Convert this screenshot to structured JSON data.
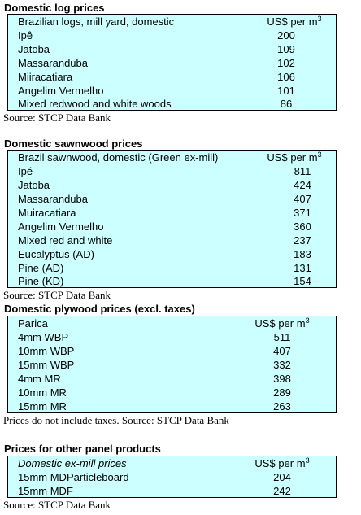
{
  "log": {
    "heading": "Domestic log prices",
    "header_label": "Brazilian logs, mill yard, domestic",
    "header_unit": "US$ per m",
    "header_sup": "3",
    "rows": [
      {
        "label": "Ipê",
        "value": "200"
      },
      {
        "label": "Jatoba",
        "value": "109"
      },
      {
        "label": "Massaranduba",
        "value": "102"
      },
      {
        "label": "Miiracatiara",
        "value": "106"
      },
      {
        "label": "Angelim Vermelho",
        "value": "101"
      },
      {
        "label": "Mixed redwood and white woods",
        "value": "86"
      }
    ],
    "source": "Source: STCP Data Bank"
  },
  "sawn": {
    "heading": "Domestic sawnwood prices",
    "header_label": "Brazil sawnwood, domestic (Green ex-mill)",
    "header_unit": "US$ per m",
    "header_sup": "3",
    "rows": [
      {
        "label": "Ipé",
        "value": "811"
      },
      {
        "label": "Jatoba",
        "value": "424"
      },
      {
        "label": "Massaranduba",
        "value": "407"
      },
      {
        "label": "Muiracatiara",
        "value": "371"
      },
      {
        "label": "Angelim Vermelho",
        "value": "360"
      },
      {
        "label": "Mixed red and white",
        "value": "237"
      },
      {
        "label": "Eucalyptus (AD)",
        "value": "183"
      },
      {
        "label": "Pine (AD)",
        "value": "131"
      },
      {
        "label": "Pine (KD)",
        "value": "154"
      }
    ],
    "source": "Source: STCP Data Bank"
  },
  "ply": {
    "heading": "Domestic plywood prices (excl. taxes)",
    "header_label": "Parica",
    "header_unit": "US$ per m",
    "header_sup": "3",
    "rows": [
      {
        "label": "4mm WBP",
        "value": "511"
      },
      {
        "label": "10mm WBP",
        "value": "407"
      },
      {
        "label": "15mm WBP",
        "value": "332"
      },
      {
        "label": "4mm MR",
        "value": "398"
      },
      {
        "label": "10mm MR",
        "value": "289"
      },
      {
        "label": "15mm MR",
        "value": "263"
      }
    ],
    "source": "Prices do not include taxes. Source: STCP Data Bank"
  },
  "panel": {
    "heading": "Prices for other panel products",
    "header_label": "Domestic ex-mill prices",
    "header_unit": "US$ per m",
    "header_sup": "3",
    "rows": [
      {
        "label": "15mm MDParticleboard",
        "value": "204"
      },
      {
        "label": "15mm MDF",
        "value": "242"
      }
    ],
    "source": "Source: STCP Data Bank"
  }
}
